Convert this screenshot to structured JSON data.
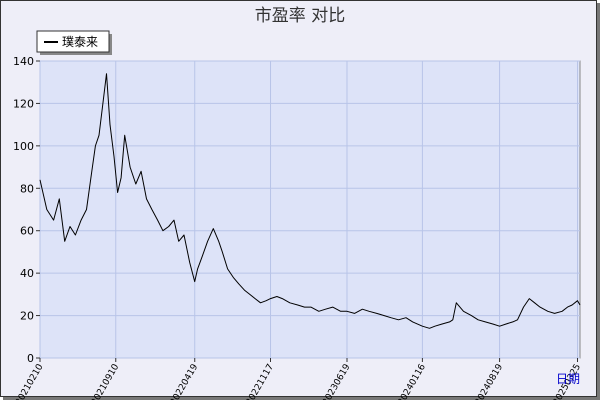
{
  "chart_data": {
    "type": "line",
    "title": "市盈率  对比",
    "xlabel": "日期",
    "ylabel": "",
    "ylim": [
      0,
      140
    ],
    "yticks": [
      0,
      20,
      40,
      60,
      80,
      100,
      120,
      140
    ],
    "xticks": [
      "20210210",
      "20210910",
      "20220419",
      "20221117",
      "20230619",
      "20240116",
      "20240819",
      "20250325"
    ],
    "grid": true,
    "legend_position": "top-left",
    "colors": {
      "plot_bg": "#dde3f8",
      "line": "#000000",
      "grid": "#b8c4e8"
    },
    "series": [
      {
        "name": "璞泰来",
        "x": [
          "2021-02-10",
          "2021-03-01",
          "2021-03-20",
          "2021-04-05",
          "2021-04-20",
          "2021-05-05",
          "2021-05-20",
          "2021-06-05",
          "2021-06-20",
          "2021-07-05",
          "2021-07-15",
          "2021-07-25",
          "2021-08-05",
          "2021-08-15",
          "2021-08-25",
          "2021-09-05",
          "2021-09-15",
          "2021-09-25",
          "2021-10-05",
          "2021-10-20",
          "2021-11-05",
          "2021-11-20",
          "2021-12-05",
          "2021-12-20",
          "2022-01-05",
          "2022-01-20",
          "2022-02-05",
          "2022-02-20",
          "2022-03-05",
          "2022-03-20",
          "2022-04-05",
          "2022-04-19",
          "2022-04-27",
          "2022-05-10",
          "2022-05-25",
          "2022-06-10",
          "2022-06-25",
          "2022-07-05",
          "2022-07-20",
          "2022-08-05",
          "2022-08-20",
          "2022-09-05",
          "2022-09-20",
          "2022-10-05",
          "2022-10-20",
          "2022-11-05",
          "2022-11-17",
          "2022-12-05",
          "2022-12-20",
          "2023-01-10",
          "2023-02-01",
          "2023-02-20",
          "2023-03-10",
          "2023-04-01",
          "2023-04-20",
          "2023-05-10",
          "2023-06-01",
          "2023-06-19",
          "2023-07-10",
          "2023-08-01",
          "2023-08-20",
          "2023-09-10",
          "2023-10-01",
          "2023-10-20",
          "2023-11-10",
          "2023-12-01",
          "2023-12-20",
          "2024-01-16",
          "2024-02-05",
          "2024-02-20",
          "2024-03-10",
          "2024-04-01",
          "2024-04-10",
          "2024-04-20",
          "2024-05-10",
          "2024-06-01",
          "2024-06-20",
          "2024-07-10",
          "2024-08-01",
          "2024-08-19",
          "2024-09-05",
          "2024-09-25",
          "2024-10-08",
          "2024-10-25",
          "2024-11-10",
          "2024-11-25",
          "2024-12-10",
          "2025-01-01",
          "2025-01-20",
          "2025-02-10",
          "2025-02-25",
          "2025-03-10",
          "2025-03-25",
          "2025-04-01"
        ],
        "y": [
          84,
          70,
          65,
          75,
          55,
          62,
          58,
          65,
          70,
          88,
          100,
          105,
          120,
          134,
          110,
          95,
          78,
          85,
          105,
          90,
          82,
          88,
          75,
          70,
          65,
          60,
          62,
          65,
          55,
          58,
          45,
          36,
          42,
          48,
          55,
          61,
          55,
          50,
          42,
          38,
          35,
          32,
          30,
          28,
          26,
          27,
          28,
          29,
          28,
          26,
          25,
          24,
          24,
          22,
          23,
          24,
          22,
          22,
          21,
          23,
          22,
          21,
          20,
          19,
          18,
          19,
          17,
          15,
          14,
          15,
          16,
          17,
          18,
          26,
          22,
          20,
          18,
          17,
          16,
          15,
          16,
          17,
          18,
          24,
          28,
          26,
          24,
          22,
          21,
          22,
          24,
          25,
          27,
          25
        ]
      }
    ]
  }
}
